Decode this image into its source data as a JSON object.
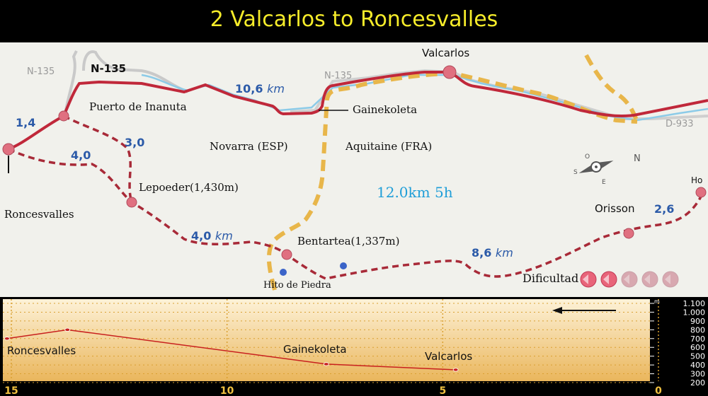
{
  "title": "2 Valcarlos to Roncesvalles",
  "map": {
    "roads": {
      "n135_left": "N-135",
      "n135_bold": "N-135",
      "n135_mid": "N-135",
      "d933": "D-933"
    },
    "places": {
      "valcarlos": "Valcarlos",
      "puerto": "Puerto de Inanuta",
      "gainekoleta": "Gainekoleta",
      "novarra": "Novarra (ESP)",
      "aquitaine": "Aquitaine (FRA)",
      "lepoeder": "Lepoeder(1,430m)",
      "roncesvalles": "Roncesvalles",
      "bentartea": "Bentartea(1,337m)",
      "hito": "Hito de Piedra",
      "orisson": "Orisson",
      "ho": "Ho"
    },
    "distances": {
      "road": "10,6",
      "road_unit": "km",
      "d14": "1,4",
      "d30": "3,0",
      "d40a": "4,0",
      "d40b": "4,0",
      "d40b_unit": "km",
      "d86": "8,6",
      "d86_unit": "km",
      "d26": "2,6"
    },
    "summary": "12.0km 5h",
    "difficulty": {
      "label": "Dificultad",
      "level": 2,
      "max": 5
    },
    "compass": {
      "n": "N",
      "s": "S",
      "e": "E",
      "o": "O"
    },
    "colors": {
      "road": "#c0283a",
      "trail": "#e8b64a",
      "river": "#8ccbe8",
      "summary": "#1f9ed8"
    }
  },
  "profile": {
    "x_ticks": [
      "15",
      "10",
      "5",
      "0"
    ],
    "y_ticks": [
      "1.100",
      "1.000",
      "900",
      "800",
      "700",
      "600",
      "500",
      "400",
      "300",
      "200"
    ],
    "y_unit": "m",
    "labels": {
      "roncesvalles": "Roncesvalles",
      "gainekoleta": "Gainekoleta",
      "valcarlos": "Valcarlos"
    }
  },
  "chart_data": {
    "type": "line",
    "title": "",
    "xlabel": "",
    "ylabel": "",
    "xlim": [
      15,
      0
    ],
    "ylim": [
      200,
      1100
    ],
    "series": [
      {
        "x": [
          15.1,
          13.7,
          7.7,
          4.7
        ],
        "y": [
          700,
          800,
          410,
          345
        ]
      }
    ],
    "point_labels": [
      "Roncesvalles",
      "",
      "Gainekoleta",
      "Valcarlos"
    ],
    "direction": "right-to-left"
  }
}
